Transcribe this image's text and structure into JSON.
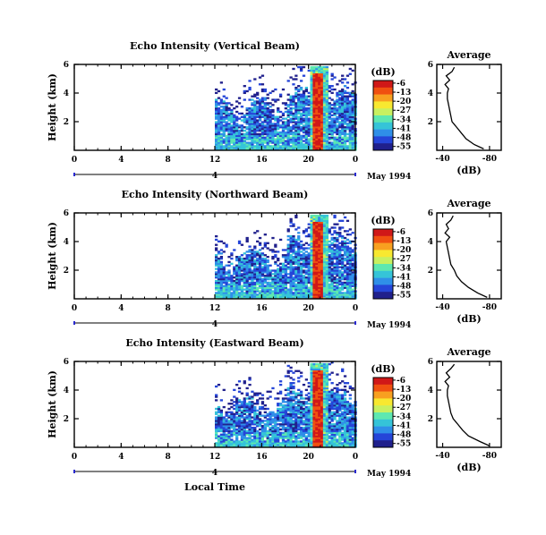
{
  "figure": {
    "xaxis_label": "Local Time",
    "date_label": "May 1994",
    "average_title": "Average",
    "average_xlabel": "(dB)",
    "colorbar_title": "(dB)"
  },
  "chart_data": [
    {
      "type": "heatmap",
      "title": "Echo Intensity (Vertical Beam)",
      "ylabel": "Height (km)",
      "xlabel": "Local Time",
      "x_ticks": [
        "0",
        "4",
        "8",
        "12",
        "16",
        "20",
        "0"
      ],
      "y_ticks": [
        "2",
        "4",
        "6"
      ],
      "y_tick_values": [
        2,
        4,
        6
      ],
      "xlim": [
        0,
        24
      ],
      "ylim": [
        0,
        6
      ],
      "day_marker": "4",
      "colorbar": {
        "ticks": [
          "-6",
          "-13",
          "-20",
          "-27",
          "-34",
          "-41",
          "-48",
          "-55"
        ],
        "range": [
          -58,
          -4
        ],
        "colors": [
          "#20208c",
          "#2545d8",
          "#2f8fe8",
          "#35c4d8",
          "#5ee8b0",
          "#c8f060",
          "#f8e830",
          "#f8a020",
          "#f05010",
          "#d01818"
        ]
      },
      "average": {
        "title": "Average",
        "xlabel": "(dB)",
        "x_ticks": [
          "-40",
          "-80"
        ],
        "xlim": [
          -35,
          -90
        ],
        "height_km": [
          0.1,
          0.4,
          0.8,
          1.2,
          1.6,
          2.0,
          2.4,
          2.8,
          3.2,
          3.6,
          4.0,
          4.3,
          4.6,
          4.9,
          5.2,
          5.5,
          5.8
        ],
        "value_db": [
          -75,
          -67,
          -60,
          -56,
          -52,
          -48,
          -47,
          -46,
          -45,
          -44,
          -44,
          -45,
          -42,
          -46,
          -43,
          -48,
          -50
        ]
      }
    },
    {
      "type": "heatmap",
      "title": "Echo Intensity (Northward Beam)",
      "ylabel": "Height (km)",
      "xlabel": "Local Time",
      "x_ticks": [
        "0",
        "4",
        "8",
        "12",
        "16",
        "20",
        "0"
      ],
      "y_ticks": [
        "2",
        "4",
        "6"
      ],
      "y_tick_values": [
        2,
        4,
        6
      ],
      "xlim": [
        0,
        24
      ],
      "ylim": [
        0,
        6
      ],
      "day_marker": "4",
      "colorbar": {
        "ticks": [
          "-6",
          "-13",
          "-20",
          "-27",
          "-34",
          "-41",
          "-48",
          "-55"
        ],
        "range": [
          -58,
          -4
        ],
        "colors": [
          "#20208c",
          "#2545d8",
          "#2f8fe8",
          "#35c4d8",
          "#5ee8b0",
          "#c8f060",
          "#f8e830",
          "#f8a020",
          "#f05010",
          "#d01818"
        ]
      },
      "average": {
        "title": "Average",
        "xlabel": "(dB)",
        "x_ticks": [
          "-40",
          "-80"
        ],
        "xlim": [
          -35,
          -90
        ],
        "height_km": [
          0.1,
          0.4,
          0.8,
          1.2,
          1.6,
          2.0,
          2.4,
          2.8,
          3.2,
          3.6,
          4.0,
          4.3,
          4.6,
          4.9,
          5.2,
          5.5,
          5.8
        ],
        "value_db": [
          -78,
          -70,
          -62,
          -56,
          -52,
          -50,
          -47,
          -46,
          -45,
          -44,
          -43,
          -46,
          -42,
          -45,
          -43,
          -47,
          -49
        ]
      }
    },
    {
      "type": "heatmap",
      "title": "Echo Intensity (Eastward Beam)",
      "ylabel": "Height (km)",
      "xlabel": "Local Time",
      "x_ticks": [
        "0",
        "4",
        "8",
        "12",
        "16",
        "20",
        "0"
      ],
      "y_ticks": [
        "2",
        "4",
        "6"
      ],
      "y_tick_values": [
        2,
        4,
        6
      ],
      "xlim": [
        0,
        24
      ],
      "ylim": [
        0,
        6
      ],
      "day_marker": "4",
      "colorbar": {
        "ticks": [
          "-6",
          "-13",
          "-20",
          "-27",
          "-34",
          "-41",
          "-48",
          "-55"
        ],
        "range": [
          -58,
          -4
        ],
        "colors": [
          "#20208c",
          "#2545d8",
          "#2f8fe8",
          "#35c4d8",
          "#5ee8b0",
          "#c8f060",
          "#f8e830",
          "#f8a020",
          "#f05010",
          "#d01818"
        ]
      },
      "average": {
        "title": "Average",
        "xlabel": "(dB)",
        "x_ticks": [
          "-40",
          "-80"
        ],
        "xlim": [
          -35,
          -90
        ],
        "height_km": [
          0.1,
          0.4,
          0.8,
          1.2,
          1.6,
          2.0,
          2.4,
          2.8,
          3.2,
          3.6,
          4.0,
          4.3,
          4.6,
          4.9,
          5.2,
          5.5,
          5.8
        ],
        "value_db": [
          -80,
          -72,
          -62,
          -57,
          -53,
          -49,
          -47,
          -46,
          -45,
          -44,
          -44,
          -45,
          -42,
          -46,
          -43,
          -47,
          -50
        ]
      }
    }
  ]
}
